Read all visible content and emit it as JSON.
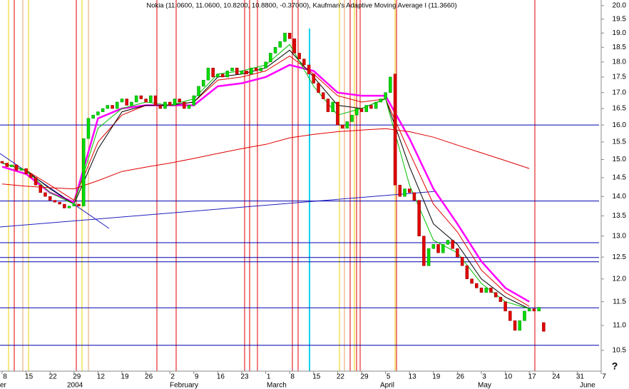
{
  "chart_data": {
    "type": "candlestick",
    "title": "Nokia (11.0600, 11.0600, 10.8200, 10.8800, -0.37000), Kaufman's Adaptive Moving Average I (11.3660)",
    "log_scale": true,
    "ylim": [
      10.1,
      20.21
    ],
    "yticks": [
      10.5,
      {
        "value": 11,
        "label": "11.0"
      },
      11.5,
      {
        "value": 12,
        "label": "12.0"
      },
      12.5,
      {
        "value": 13,
        "label": "13.0"
      },
      13.5,
      {
        "value": 14,
        "label": "14.0"
      },
      14.5,
      {
        "value": 15,
        "label": "15.0"
      },
      15.5,
      {
        "value": 16,
        "label": "16.0"
      },
      16.5,
      {
        "value": 17,
        "label": "17.0"
      },
      17.5,
      {
        "value": 18,
        "label": "18.0"
      },
      18.5,
      {
        "value": 19,
        "label": "19.0"
      },
      19.5,
      {
        "value": 20,
        "label": "20.0"
      }
    ],
    "week_labels": [
      "8",
      "15",
      "22",
      "29",
      "12",
      "19",
      "26",
      "2",
      "9",
      "16",
      "23",
      "1",
      "8",
      "15",
      "22",
      "29",
      "5",
      "13",
      "19",
      "26",
      "3",
      "10",
      "17",
      "24",
      "31",
      "7"
    ],
    "months": [
      "er",
      "2004",
      "February",
      "March",
      "April",
      "May",
      "June"
    ],
    "corner_mark": "?",
    "up_color": "#00dd00",
    "down_color": "#e00000",
    "open": [
      14.95,
      14.9,
      14.8,
      14.85,
      14.7,
      14.75,
      14.6,
      14.5,
      14.3,
      14.1,
      14.0,
      13.9,
      13.85,
      13.8,
      13.7,
      13.75,
      13.8,
      13.75,
      15.6,
      16.2,
      16.3,
      16.4,
      16.5,
      16.6,
      16.5,
      16.7,
      16.8,
      16.6,
      16.7,
      16.9,
      16.8,
      16.7,
      16.9,
      16.6,
      16.5,
      16.7,
      16.6,
      16.8,
      16.7,
      16.5,
      16.6,
      16.9,
      17.2,
      17.4,
      17.8,
      17.5,
      17.6,
      17.5,
      17.7,
      17.8,
      17.6,
      17.7,
      17.6,
      17.8,
      17.7,
      17.8,
      18.0,
      18.3,
      18.5,
      18.7,
      19.0,
      18.8,
      18.3,
      18.1,
      17.9,
      17.6,
      17.3,
      17.0,
      16.8,
      16.4,
      16.7,
      16.0,
      15.9,
      16.1,
      16.3,
      16.5,
      16.4,
      16.6,
      16.5,
      16.7,
      16.8,
      17.0,
      17.6,
      14.3,
      14.0,
      14.2,
      14.1,
      13.9,
      13.0,
      12.3,
      12.7,
      12.8,
      12.6,
      12.8,
      12.9,
      12.7,
      12.5,
      12.3,
      12.0,
      11.9,
      11.8,
      11.7,
      11.8,
      11.7,
      11.6,
      11.5,
      11.3,
      11.1,
      10.9,
      11.1,
      11.3,
      11.35,
      11.3,
      11.06
    ],
    "close": [
      14.9,
      14.8,
      14.85,
      14.7,
      14.75,
      14.6,
      14.5,
      14.3,
      14.1,
      14.0,
      13.9,
      13.85,
      13.8,
      13.7,
      13.75,
      13.8,
      13.75,
      15.6,
      16.2,
      16.3,
      16.4,
      16.5,
      16.6,
      16.5,
      16.7,
      16.8,
      16.6,
      16.7,
      16.9,
      16.8,
      16.7,
      16.9,
      16.6,
      16.5,
      16.7,
      16.6,
      16.8,
      16.7,
      16.5,
      16.6,
      16.9,
      17.2,
      17.4,
      17.8,
      17.5,
      17.6,
      17.5,
      17.7,
      17.8,
      17.6,
      17.7,
      17.6,
      17.8,
      17.7,
      17.8,
      18.0,
      18.3,
      18.5,
      18.7,
      19.0,
      18.8,
      18.3,
      18.1,
      17.9,
      17.6,
      17.3,
      17.0,
      16.8,
      16.4,
      16.7,
      16.0,
      15.9,
      16.1,
      16.3,
      16.5,
      16.4,
      16.6,
      16.5,
      16.7,
      16.8,
      17.0,
      17.5,
      14.3,
      14.0,
      14.2,
      14.1,
      13.9,
      13.0,
      12.3,
      12.7,
      12.8,
      12.6,
      12.8,
      12.9,
      12.7,
      12.5,
      12.3,
      12.0,
      11.9,
      11.8,
      11.7,
      11.8,
      11.7,
      11.6,
      11.5,
      11.3,
      11.1,
      10.9,
      11.1,
      11.3,
      11.35,
      11.3,
      11.38,
      10.88
    ],
    "series": [
      {
        "color": "#ff00ff",
        "values": [
          14.8,
          14.6,
          14.1,
          13.85,
          16.2,
          16.5,
          16.6,
          16.6,
          16.6,
          17.2,
          17.3,
          17.5,
          17.9,
          17.7,
          17.0,
          16.9,
          16.9,
          15.6,
          14.2,
          13.3,
          12.4,
          11.8,
          11.5
        ]
      },
      {
        "color": "#e00000",
        "values": [
          14.9,
          14.7,
          14.3,
          13.9,
          15.5,
          16.3,
          16.6,
          16.6,
          16.7,
          17.4,
          17.5,
          17.7,
          18.2,
          17.6,
          16.9,
          16.7,
          16.8,
          15.2,
          13.8,
          13.1,
          12.2,
          11.7,
          11.4
        ]
      },
      {
        "color": "#000000",
        "values": [
          14.9,
          14.7,
          14.2,
          13.8,
          15.3,
          16.4,
          16.6,
          16.6,
          16.7,
          17.5,
          17.6,
          17.8,
          18.4,
          17.5,
          16.6,
          16.5,
          16.8,
          14.8,
          13.3,
          12.8,
          12.0,
          11.6,
          11.35
        ]
      },
      {
        "color": "#00c000",
        "values": [
          14.9,
          14.7,
          14.1,
          13.8,
          15.9,
          16.5,
          16.7,
          16.6,
          16.8,
          17.6,
          17.7,
          17.9,
          18.6,
          17.2,
          16.3,
          16.5,
          16.8,
          14.3,
          12.9,
          12.6,
          11.9,
          11.5,
          11.35
        ]
      },
      {
        "color": "#e00000",
        "values": [
          14.33,
          14.27,
          14.23,
          14.2,
          14.42,
          14.67,
          14.79,
          14.9,
          15.03,
          15.17,
          15.31,
          15.43,
          15.62,
          15.72,
          15.8,
          15.85,
          15.89,
          15.8,
          15.64,
          15.41,
          15.19,
          14.97,
          14.75
        ]
      }
    ],
    "hlines": [
      16.0,
      13.88,
      12.84,
      12.49,
      12.39,
      11.37,
      10.6
    ],
    "hline_color": "#0000b0"
  }
}
